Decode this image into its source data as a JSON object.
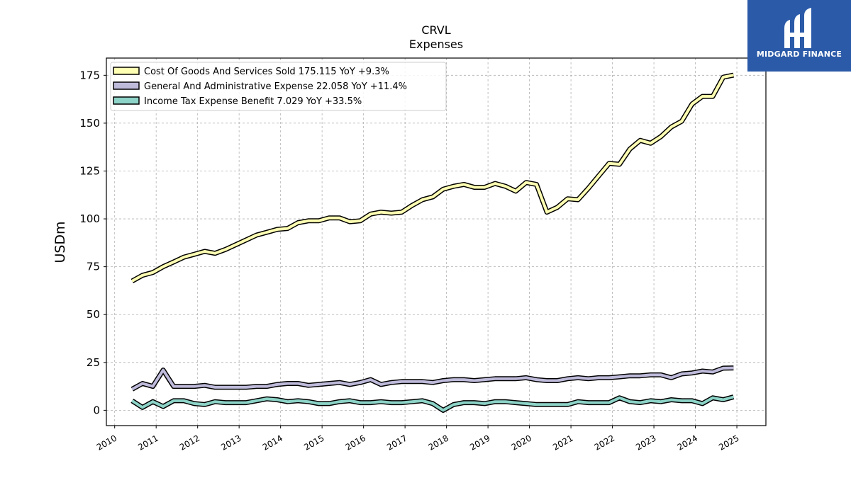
{
  "brand": {
    "name": "MIDGARD FINANCE",
    "color": "#2b5aa8"
  },
  "chart_data": {
    "type": "line",
    "title": "CRVL",
    "subtitle": "Expenses",
    "xlabel": "",
    "ylabel": "USDm",
    "xlim": [
      2009.8,
      2025.7
    ],
    "ylim": [
      -8,
      184
    ],
    "x_ticks": [
      "2010",
      "2011",
      "2012",
      "2013",
      "2014",
      "2015",
      "2016",
      "2017",
      "2018",
      "2019",
      "2020",
      "2021",
      "2022",
      "2023",
      "2024",
      "2025"
    ],
    "y_ticks": [
      0,
      25,
      50,
      75,
      100,
      125,
      150,
      175
    ],
    "grid": true,
    "legend_position": "top-left",
    "series": [
      {
        "name": "Cost Of Goods And Services Sold",
        "legend_label": "Cost Of Goods And Services Sold  175.115 YoY +9.3%",
        "color": "#ffffb3",
        "x": [
          2010.42,
          2010.67,
          2010.92,
          2011.17,
          2011.42,
          2011.67,
          2011.92,
          2012.17,
          2012.42,
          2012.67,
          2012.92,
          2013.17,
          2013.42,
          2013.67,
          2013.92,
          2014.17,
          2014.42,
          2014.67,
          2014.92,
          2015.17,
          2015.42,
          2015.67,
          2015.92,
          2016.17,
          2016.42,
          2016.67,
          2016.92,
          2017.17,
          2017.42,
          2017.67,
          2017.92,
          2018.17,
          2018.42,
          2018.67,
          2018.92,
          2019.17,
          2019.42,
          2019.67,
          2019.92,
          2020.17,
          2020.42,
          2020.67,
          2020.92,
          2021.17,
          2021.42,
          2021.67,
          2021.92,
          2022.17,
          2022.42,
          2022.67,
          2022.92,
          2023.17,
          2023.42,
          2023.67,
          2023.92,
          2024.17,
          2024.42,
          2024.67,
          2024.92
        ],
        "values": [
          67.5,
          70.5,
          72,
          75,
          77.5,
          80,
          81.5,
          83,
          82,
          84,
          86.5,
          89,
          91.5,
          93,
          94.5,
          95,
          98,
          99,
          99,
          100.5,
          100.5,
          98.5,
          99,
          102.5,
          103.5,
          103,
          103.5,
          107,
          110,
          111.5,
          115.5,
          117,
          118,
          116.5,
          116.5,
          118.5,
          117,
          114.5,
          119,
          118,
          103.5,
          106,
          110.5,
          110,
          116,
          122.5,
          129,
          128.5,
          136.5,
          141,
          139.5,
          143,
          148,
          151,
          160,
          164,
          164,
          174,
          175.1
        ]
      },
      {
        "name": "General And Administrative Expense",
        "legend_label": "General And Administrative Expense  22.058 YoY +11.4%",
        "color": "#bebada",
        "x": [
          2010.42,
          2010.67,
          2010.92,
          2011.17,
          2011.42,
          2011.67,
          2011.92,
          2012.17,
          2012.42,
          2012.67,
          2012.92,
          2013.17,
          2013.42,
          2013.67,
          2013.92,
          2014.17,
          2014.42,
          2014.67,
          2014.92,
          2015.17,
          2015.42,
          2015.67,
          2015.92,
          2016.17,
          2016.42,
          2016.67,
          2016.92,
          2017.17,
          2017.42,
          2017.67,
          2017.92,
          2018.17,
          2018.42,
          2018.67,
          2018.92,
          2019.17,
          2019.42,
          2019.67,
          2019.92,
          2020.17,
          2020.42,
          2020.67,
          2020.92,
          2021.17,
          2021.42,
          2021.67,
          2021.92,
          2022.17,
          2022.42,
          2022.67,
          2022.92,
          2023.17,
          2023.42,
          2023.67,
          2023.92,
          2024.17,
          2024.42,
          2024.67,
          2024.92
        ],
        "values": [
          11,
          14,
          12.5,
          21,
          12.5,
          12.5,
          12.5,
          13,
          12,
          12,
          12,
          12,
          12.5,
          12.5,
          13.5,
          14,
          14,
          13,
          13.5,
          14,
          14.5,
          13.5,
          14.5,
          16,
          13.5,
          14.5,
          15,
          15,
          15,
          14.5,
          15.5,
          16,
          16,
          15.5,
          16,
          16.5,
          16.5,
          16.5,
          17,
          16,
          15.5,
          15.5,
          16.5,
          17,
          16.5,
          17,
          17,
          17.5,
          18,
          18,
          18.5,
          18.5,
          17,
          19,
          19.5,
          20.5,
          20,
          22,
          22.1
        ]
      },
      {
        "name": "Income Tax Expense Benefit",
        "legend_label": "Income Tax Expense Benefit  7.029 YoY +33.5%",
        "color": "#8dd3c7",
        "x": [
          2010.42,
          2010.67,
          2010.92,
          2011.17,
          2011.42,
          2011.67,
          2011.92,
          2012.17,
          2012.42,
          2012.67,
          2012.92,
          2013.17,
          2013.42,
          2013.67,
          2013.92,
          2014.17,
          2014.42,
          2014.67,
          2014.92,
          2015.17,
          2015.42,
          2015.67,
          2015.92,
          2016.17,
          2016.42,
          2016.67,
          2016.92,
          2017.17,
          2017.42,
          2017.67,
          2017.92,
          2018.17,
          2018.42,
          2018.67,
          2018.92,
          2019.17,
          2019.42,
          2019.67,
          2019.92,
          2020.17,
          2020.42,
          2020.67,
          2020.92,
          2021.17,
          2021.42,
          2021.67,
          2021.92,
          2022.17,
          2022.42,
          2022.67,
          2022.92,
          2023.17,
          2023.42,
          2023.67,
          2023.92,
          2024.17,
          2024.42,
          2024.67,
          2024.92
        ],
        "values": [
          5,
          1.5,
          4.5,
          2,
          5,
          5,
          3.5,
          3,
          4.5,
          4,
          4,
          4,
          5,
          6,
          5.5,
          4.5,
          5,
          4.5,
          3.5,
          3.5,
          4.5,
          5,
          4,
          4,
          4.5,
          4,
          4,
          4.5,
          5,
          3.5,
          0,
          3,
          4,
          4,
          3.5,
          4.5,
          4.5,
          4,
          3.5,
          3,
          3,
          3,
          3,
          4.5,
          4,
          4,
          4,
          6.5,
          4.5,
          4,
          5,
          4.5,
          5.5,
          5,
          5,
          3.5,
          6.5,
          5.5,
          7.0
        ]
      }
    ]
  }
}
